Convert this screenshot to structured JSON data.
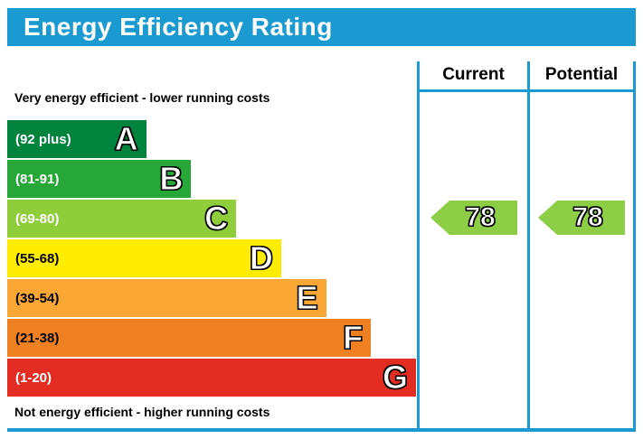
{
  "header": {
    "title": "Energy Efficiency Rating"
  },
  "colors": {
    "accent_teal": "#1b9ad2",
    "outline_black": "#000000",
    "background": "#ffffff"
  },
  "chart_data": {
    "type": "bar",
    "subtype": "epc-energy-efficiency-rating",
    "title": "Energy Efficiency Rating",
    "top_note": "Very energy efficient - lower running costs",
    "bottom_note": "Not energy efficient - higher running costs",
    "bands": [
      {
        "letter": "A",
        "range_label": "(92 plus)",
        "range_min": 92,
        "range_max": 100,
        "color": "#00833d",
        "label_color": "#ffffff",
        "width_pct": 34
      },
      {
        "letter": "B",
        "range_label": "(81-91)",
        "range_min": 81,
        "range_max": 91,
        "color": "#27a737",
        "label_color": "#ffffff",
        "width_pct": 45
      },
      {
        "letter": "C",
        "range_label": "(69-80)",
        "range_min": 69,
        "range_max": 80,
        "color": "#8fce3a",
        "label_color": "#ffffff",
        "width_pct": 56
      },
      {
        "letter": "D",
        "range_label": "(55-68)",
        "range_min": 55,
        "range_max": 68,
        "color": "#ffec00",
        "label_color": "#000000",
        "width_pct": 67
      },
      {
        "letter": "E",
        "range_label": "(39-54)",
        "range_min": 39,
        "range_max": 54,
        "color": "#f9a634",
        "label_color": "#000000",
        "width_pct": 78
      },
      {
        "letter": "F",
        "range_label": "(21-38)",
        "range_min": 21,
        "range_max": 38,
        "color": "#ee8022",
        "label_color": "#000000",
        "width_pct": 89
      },
      {
        "letter": "G",
        "range_label": "(1-20)",
        "range_min": 1,
        "range_max": 20,
        "color": "#e32d22",
        "label_color": "#ffffff",
        "width_pct": 100
      }
    ],
    "columns": [
      {
        "label": "Current",
        "value": 78,
        "band": "C",
        "arrow_color": "#8dce46"
      },
      {
        "label": "Potential",
        "value": 78,
        "band": "C",
        "arrow_color": "#8dce46"
      }
    ]
  }
}
